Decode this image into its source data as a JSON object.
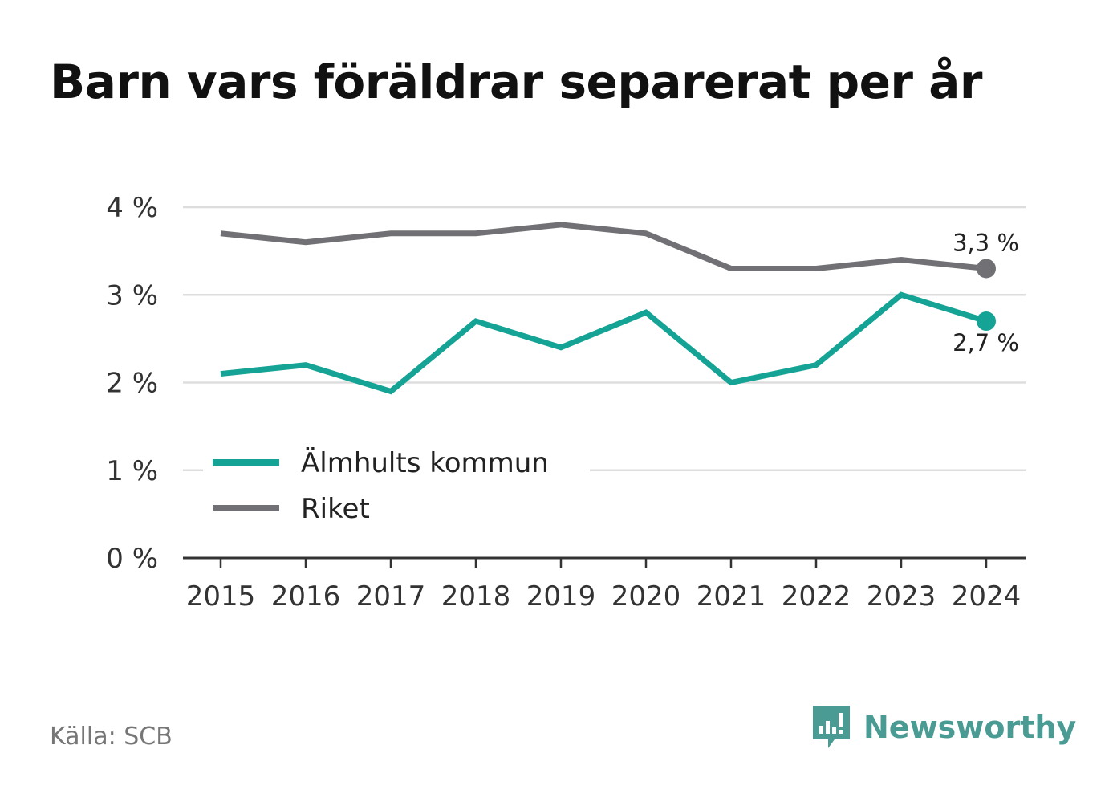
{
  "title": "Barn vars föräldrar separerat per år",
  "source": "Källa: SCB",
  "brand": {
    "name": "Newsworthy",
    "icon": "newsworthy-logo-icon",
    "color": "#4a9b94"
  },
  "chart_data": {
    "type": "line",
    "title": "Barn vars föräldrar separerat per år",
    "x": [
      "2015",
      "2016",
      "2017",
      "2018",
      "2019",
      "2020",
      "2021",
      "2022",
      "2023",
      "2024"
    ],
    "ylim": [
      0,
      4
    ],
    "yticks": [
      0,
      1,
      2,
      3,
      4
    ],
    "ytick_labels": [
      "0 %",
      "1 %",
      "2 %",
      "3 %",
      "4 %"
    ],
    "grid": true,
    "legend_position": "lower-left",
    "series": [
      {
        "name": "Älmhults kommun",
        "color": "#14a394",
        "values": [
          2.1,
          2.2,
          1.9,
          2.7,
          2.4,
          2.8,
          2.0,
          2.2,
          3.0,
          2.7
        ],
        "end_label": "2,7 %"
      },
      {
        "name": "Riket",
        "color": "#707075",
        "values": [
          3.7,
          3.6,
          3.7,
          3.7,
          3.8,
          3.7,
          3.3,
          3.3,
          3.4,
          3.3
        ],
        "end_label": "3,3 %"
      }
    ]
  }
}
